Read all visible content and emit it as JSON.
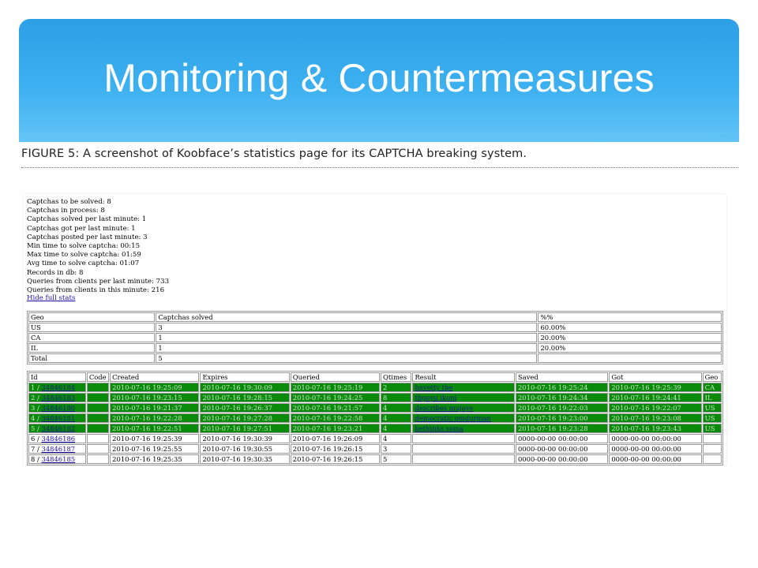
{
  "slide": {
    "title": "Monitoring & Countermeasures",
    "caption": "FIGURE 5: A screenshot of Koobface’s statistics page for its CAPTCHA breaking system."
  },
  "stats": [
    "Captchas to be solved: 8",
    "Captchas in process: 8",
    "Captchas solved per last minute: 1",
    "Captchas got per last minute: 1",
    "Captchas posted per last minute: 3",
    "Min time to solve captcha: 00:15",
    "Max time to solve captcha: 01:59",
    "Avg time to solve captcha: 01:07",
    "Records in db: 8",
    "Queries from clients per last minute: 733",
    "Queries from clients in this minute: 216"
  ],
  "hide_link": "Hide full stats",
  "geo_table": {
    "headers": [
      "Geo",
      "Captchas solved",
      "%%"
    ],
    "rows": [
      [
        "US",
        "3",
        "60.00%"
      ],
      [
        "CA",
        "1",
        "20.00%"
      ],
      [
        "IL",
        "1",
        "20.00%"
      ],
      [
        "Total",
        "5",
        ""
      ]
    ]
  },
  "req_table": {
    "headers": [
      "Id",
      "Code",
      "Created",
      "Expires",
      "Queried",
      "Qtimes",
      "Result",
      "Saved",
      "Got",
      "Geo"
    ],
    "rows": [
      {
        "num": "1 /",
        "id": "34846184",
        "code": "",
        "created": "2010-07-16 19:25:09",
        "expires": "2010-07-16 19:30:09",
        "queried": "2010-07-16 19:25:19",
        "qtimes": "2",
        "result": "havetty the",
        "saved": "2010-07-16 19:25:24",
        "got": "2010-07-16 19:25:39",
        "geo": "CA",
        "solved": true
      },
      {
        "num": "2 /",
        "id": "34846183",
        "code": "",
        "created": "2010-07-16 19:23:15",
        "expires": "2010-07-16 19:28:15",
        "queried": "2010-07-16 19:24:25",
        "qtimes": "8",
        "result": "thgoyu ikoni",
        "saved": "2010-07-16 19:24:34",
        "got": "2010-07-16 19:24:41",
        "geo": "IL",
        "solved": true
      },
      {
        "num": "3 /",
        "id": "34846180",
        "code": "",
        "created": "2010-07-16 19:21:37",
        "expires": "2010-07-16 19:26:37",
        "queried": "2010-07-16 19:21:57",
        "qtimes": "4",
        "result": "describes mujaye",
        "saved": "2010-07-16 19:22:03",
        "got": "2010-07-16 19:22:07",
        "geo": "US",
        "solved": true
      },
      {
        "num": "4 /",
        "id": "34846181",
        "code": "",
        "created": "2010-07-16 19:22:28",
        "expires": "2010-07-16 19:27:28",
        "queried": "2010-07-16 19:22:58",
        "qtimes": "4",
        "result": "democratic omdurman",
        "saved": "2010-07-16 19:23:00",
        "got": "2010-07-16 19:23:08",
        "geo": "US",
        "solved": true
      },
      {
        "num": "5 /",
        "id": "34846182",
        "code": "",
        "created": "2010-07-16 19:22:51",
        "expires": "2010-07-16 19:27:51",
        "queried": "2010-07-16 19:23:21",
        "qtimes": "4",
        "result": "bethinks soma",
        "saved": "2010-07-16 19:23:28",
        "got": "2010-07-16 19:23:43",
        "geo": "US",
        "solved": true
      },
      {
        "num": "6 /",
        "id": "34846186",
        "code": "",
        "created": "2010-07-16 19:25:39",
        "expires": "2010-07-16 19:30:39",
        "queried": "2010-07-16 19:26:09",
        "qtimes": "4",
        "result": "",
        "saved": "0000-00-00 00:00:00",
        "got": "0000-00-00 00:00:00",
        "geo": "",
        "solved": false
      },
      {
        "num": "7 /",
        "id": "34846187",
        "code": "",
        "created": "2010-07-16 19:25:55",
        "expires": "2010-07-16 19:30:55",
        "queried": "2010-07-16 19:26:15",
        "qtimes": "3",
        "result": "",
        "saved": "0000-00-00 00:00:00",
        "got": "0000-00-00 00:00:00",
        "geo": "",
        "solved": false
      },
      {
        "num": "8 /",
        "id": "34846185",
        "code": "",
        "created": "2010-07-16 19:25:35",
        "expires": "2010-07-16 19:30:35",
        "queried": "2010-07-16 19:26:15",
        "qtimes": "5",
        "result": "",
        "saved": "0000-00-00 00:00:00",
        "got": "0000-00-00 00:00:00",
        "geo": "",
        "solved": false
      }
    ]
  },
  "colors": {
    "banner": "#2c9fe6",
    "solved_row": "#0a8a0a",
    "link": "#1a0dab"
  }
}
